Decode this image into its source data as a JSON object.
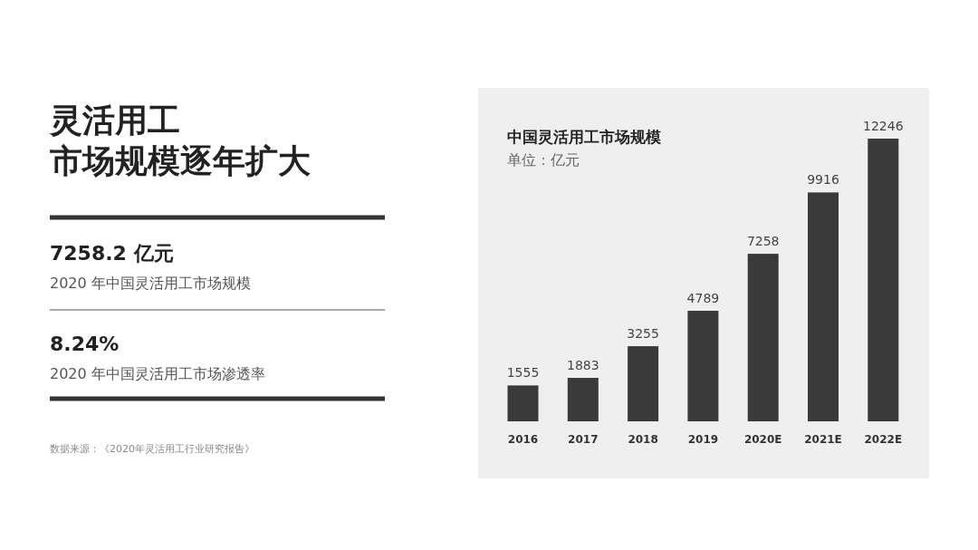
{
  "chart_data": [
    {
      "type": "other",
      "title": "灵活用工",
      "subtitle": "市场规模逐年扩大",
      "annotations": [
        "7258.2 亿元",
        "2020 年中国灵活用工市场规模",
        "8.24%",
        "2020 年中国灵活用工市场渗透率",
        "数据来源：《2020年灵活用工行业研究报告》"
      ]
    },
    {
      "type": "bar",
      "title": "中国灵活用工市场规模",
      "subtitle": "单位：亿元",
      "categories": [
        "2016",
        "2017",
        "2018",
        "2019",
        "2020E",
        "2021E",
        "2022E"
      ],
      "values": [
        1555,
        1883,
        3255,
        4789,
        7258,
        9916,
        12246
      ],
      "color": "#3a3a3a",
      "data_labels": true
    }
  ]
}
